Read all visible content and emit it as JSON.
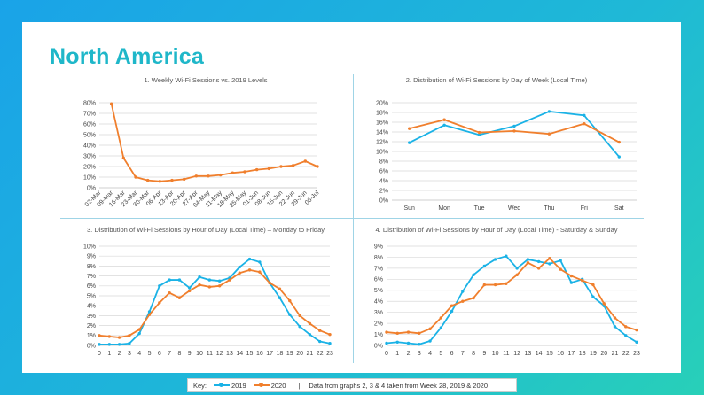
{
  "page": {
    "title": "North America"
  },
  "colors": {
    "s2019": "#1ab2e6",
    "s2020": "#f07f2d",
    "grid": "#d9d9d9",
    "axis": "#bfbfbf"
  },
  "key": {
    "label": "Key:",
    "series_2019": "2019",
    "series_2020": "2020",
    "separator": "|",
    "note": "Data from graphs 2, 3 & 4 taken from Week 28, 2019 & 2020"
  },
  "chart_data": [
    {
      "type": "line",
      "title": "1. Weekly Wi-Fi Sessions vs. 2019 Levels",
      "categories": [
        "02-Mar",
        "09-Mar",
        "16-Mar",
        "23-Mar",
        "30-Mar",
        "06-Apr",
        "13-Apr",
        "20-Apr",
        "27-Apr",
        "04-May",
        "11-May",
        "18-May",
        "25-May",
        "01-Jun",
        "08-Jun",
        "15-Jun",
        "22-Jun",
        "29-Jun",
        "06-Jul"
      ],
      "ylim": [
        0,
        80
      ],
      "yticks": [
        "0%",
        "10%",
        "20%",
        "30%",
        "40%",
        "50%",
        "60%",
        "70%",
        "80%"
      ],
      "series": [
        {
          "values": [
            null,
            79,
            28,
            10,
            7,
            6,
            7,
            8,
            11,
            11,
            12,
            14,
            15,
            17,
            18,
            20,
            21,
            25,
            20
          ]
        }
      ]
    },
    {
      "type": "line",
      "title": "2. Distribution of Wi-Fi Sessions by Day of Week (Local Time)",
      "categories": [
        "Sun",
        "Mon",
        "Tue",
        "Wed",
        "Thu",
        "Fri",
        "Sat"
      ],
      "ylim": [
        0,
        20
      ],
      "yticks": [
        "0%",
        "2%",
        "4%",
        "6%",
        "8%",
        "10%",
        "12%",
        "14%",
        "16%",
        "18%",
        "20%"
      ],
      "series": [
        {
          "name": "2019",
          "values": [
            11.8,
            15.4,
            13.4,
            15.2,
            18.2,
            17.4,
            8.9
          ]
        },
        {
          "name": "2020",
          "values": [
            14.7,
            16.5,
            13.9,
            14.2,
            13.6,
            15.7,
            11.9
          ]
        }
      ]
    },
    {
      "type": "line",
      "title": "3. Distribution of Wi-Fi Sessions by Hour of Day (Local Time) – Monday to Friday",
      "categories": [
        "0",
        "1",
        "2",
        "3",
        "4",
        "5",
        "6",
        "7",
        "8",
        "9",
        "10",
        "11",
        "12",
        "13",
        "14",
        "15",
        "16",
        "17",
        "18",
        "19",
        "20",
        "21",
        "22",
        "23"
      ],
      "ylim": [
        0,
        10
      ],
      "yticks": [
        "0%",
        "1%",
        "2%",
        "3%",
        "4%",
        "5%",
        "6%",
        "7%",
        "8%",
        "9%",
        "10%"
      ],
      "series": [
        {
          "name": "2019",
          "values": [
            0.1,
            0.1,
            0.1,
            0.2,
            1.2,
            3.4,
            6.0,
            6.6,
            6.6,
            5.8,
            6.9,
            6.6,
            6.5,
            6.8,
            7.9,
            8.7,
            8.4,
            6.3,
            4.8,
            3.1,
            1.9,
            1.1,
            0.4,
            0.2
          ]
        },
        {
          "name": "2020",
          "values": [
            1.0,
            0.9,
            0.8,
            1.0,
            1.6,
            3.1,
            4.3,
            5.3,
            4.8,
            5.5,
            6.1,
            5.9,
            6.0,
            6.6,
            7.3,
            7.6,
            7.4,
            6.3,
            5.7,
            4.5,
            3.0,
            2.2,
            1.5,
            1.1
          ]
        }
      ]
    },
    {
      "type": "line",
      "title": "4. Distribution of Wi-Fi Sessions by Hour of Day (Local Time) - Saturday & Sunday",
      "categories": [
        "0",
        "1",
        "2",
        "3",
        "4",
        "5",
        "6",
        "7",
        "8",
        "9",
        "10",
        "11",
        "12",
        "13",
        "14",
        "15",
        "16",
        "17",
        "18",
        "19",
        "20",
        "21",
        "22",
        "23"
      ],
      "ylim": [
        0,
        9
      ],
      "yticks": [
        "0%",
        "1%",
        "2%",
        "3%",
        "4%",
        "5%",
        "6%",
        "7%",
        "8%",
        "9%"
      ],
      "series": [
        {
          "name": "2019",
          "values": [
            0.2,
            0.3,
            0.2,
            0.1,
            0.4,
            1.6,
            3.1,
            4.9,
            6.4,
            7.2,
            7.8,
            8.1,
            7.0,
            7.8,
            7.6,
            7.4,
            7.7,
            5.7,
            6.0,
            4.4,
            3.6,
            1.7,
            0.9,
            0.3
          ]
        },
        {
          "name": "2020",
          "values": [
            1.2,
            1.1,
            1.2,
            1.1,
            1.5,
            2.5,
            3.6,
            4.0,
            4.3,
            5.5,
            5.5,
            5.6,
            6.4,
            7.5,
            7.0,
            7.9,
            6.9,
            6.3,
            5.9,
            5.5,
            3.8,
            2.5,
            1.7,
            1.4
          ]
        }
      ]
    }
  ]
}
